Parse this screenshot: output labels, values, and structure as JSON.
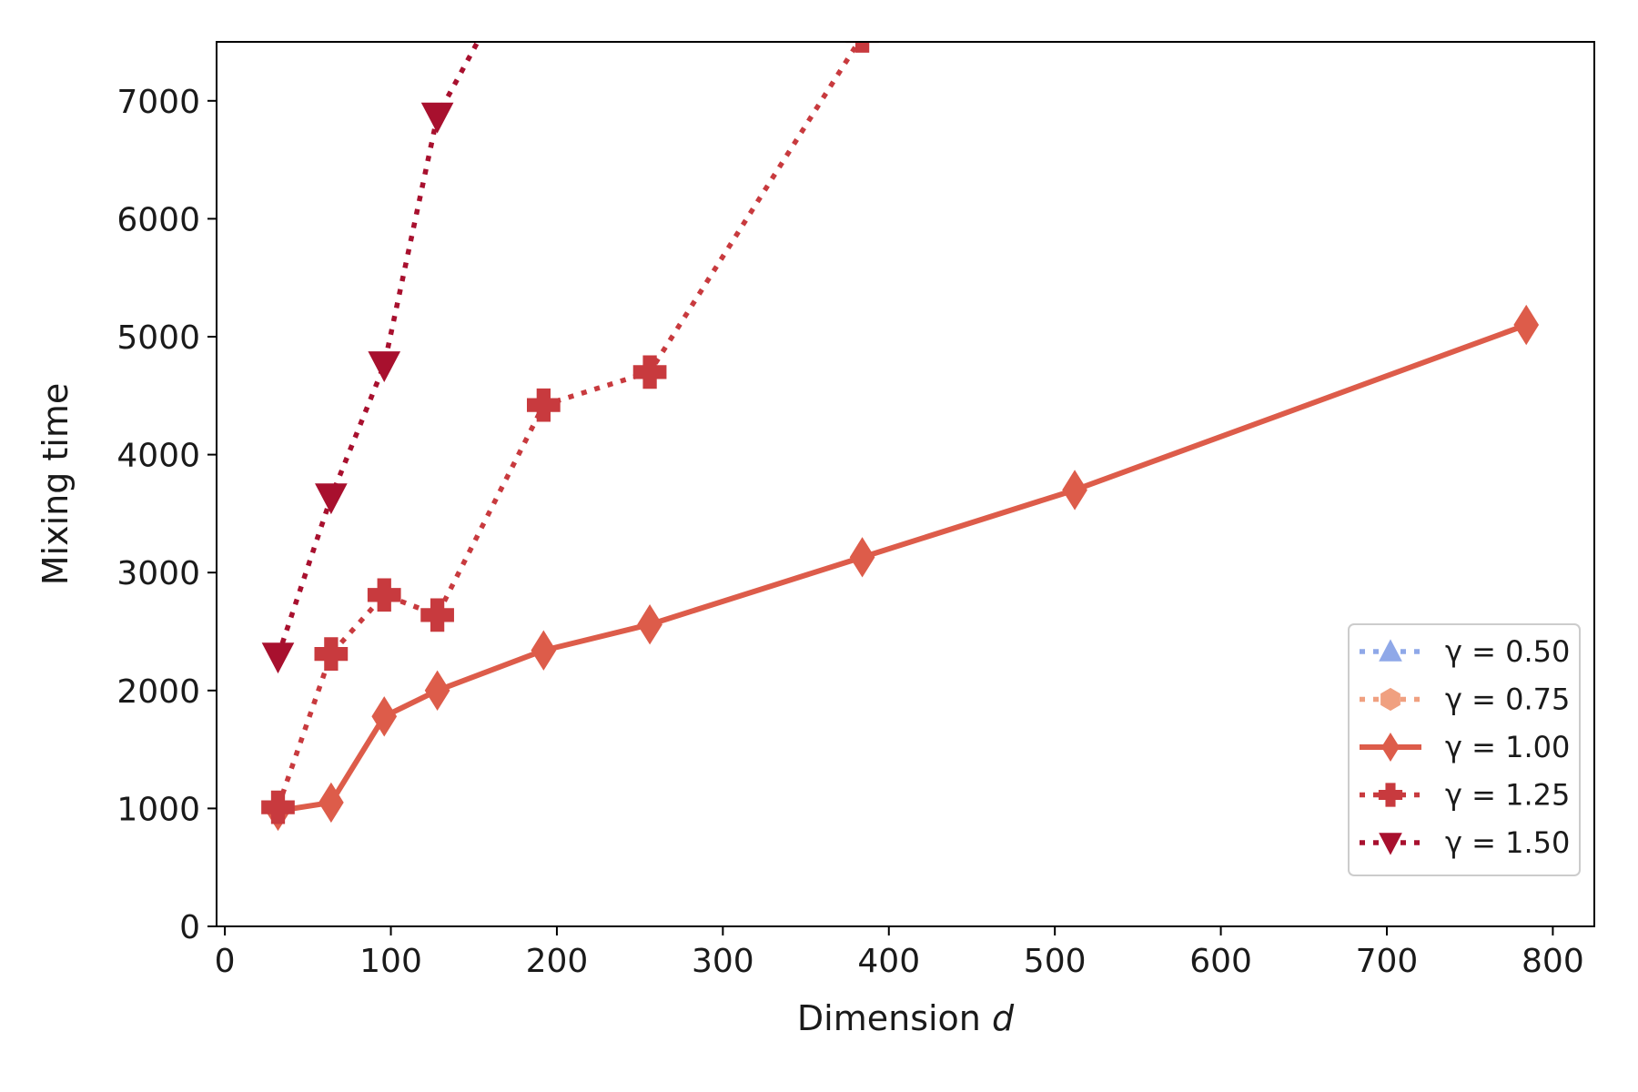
{
  "chart_data": {
    "type": "line",
    "title": "",
    "xlabel": "Dimension",
    "xlabel_var": "d",
    "ylabel": "Mixing time",
    "xlim": [
      -5,
      825
    ],
    "ylim": [
      0,
      7500
    ],
    "xticks": [
      0,
      100,
      200,
      300,
      400,
      500,
      600,
      700,
      800
    ],
    "yticks": [
      0,
      1000,
      2000,
      3000,
      4000,
      5000,
      6000,
      7000
    ],
    "grid": false,
    "legend_position": "lower-right",
    "series": [
      {
        "name": "γ = 0.50",
        "color": "#8fa8e8",
        "linestyle": "dotted",
        "marker": "triangle-up",
        "x": [],
        "y": []
      },
      {
        "name": "γ = 0.75",
        "color": "#f0a080",
        "linestyle": "dotted",
        "marker": "hexagon",
        "x": [],
        "y": []
      },
      {
        "name": "γ = 1.00",
        "color": "#dd5c4a",
        "linestyle": "solid",
        "marker": "diamond",
        "x": [
          32,
          64,
          96,
          128,
          192,
          256,
          384,
          512,
          784
        ],
        "y": [
          980,
          1050,
          1780,
          2000,
          2340,
          2560,
          3130,
          3700,
          5100
        ]
      },
      {
        "name": "γ = 1.25",
        "color": "#c83a3e",
        "linestyle": "dotted",
        "marker": "plus",
        "x": [
          32,
          64,
          96,
          128,
          192,
          256,
          384
        ],
        "y": [
          1010,
          2310,
          2810,
          2640,
          4420,
          4700,
          7550
        ]
      },
      {
        "name": "γ = 1.50",
        "color": "#a8102e",
        "linestyle": "dotted",
        "marker": "triangle-down",
        "x": [
          32,
          64,
          96,
          128,
          160
        ],
        "y": [
          2290,
          3640,
          4760,
          6870,
          7700
        ]
      }
    ]
  }
}
